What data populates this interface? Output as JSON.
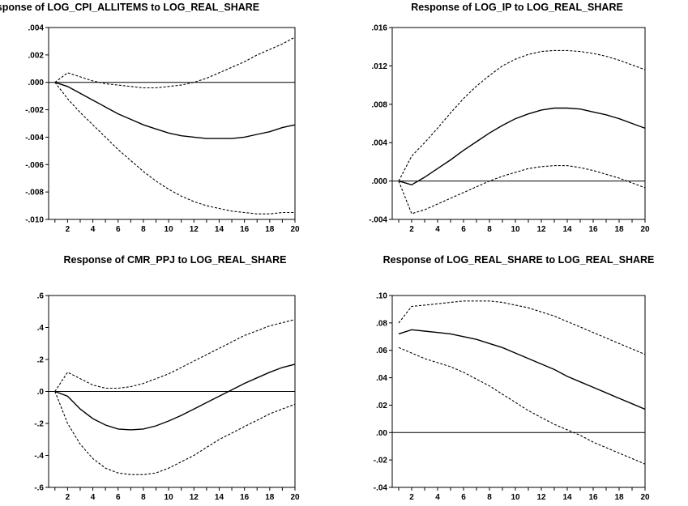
{
  "chart_data": [
    {
      "type": "line",
      "title": "Response of LOG_CPI_ALLITEMS to LOG_REAL_SHARE",
      "x": [
        1,
        2,
        3,
        4,
        5,
        6,
        7,
        8,
        9,
        10,
        11,
        12,
        13,
        14,
        15,
        16,
        17,
        18,
        19,
        20
      ],
      "ylim": [
        -0.01,
        0.004
      ],
      "yticks": [
        -0.01,
        -0.008,
        -0.006,
        -0.004,
        -0.002,
        0.0,
        0.002,
        0.004
      ],
      "ytick_labels": [
        "-.010",
        "-.008",
        "-.006",
        "-.004",
        "-.002",
        ".000",
        ".002",
        ".004"
      ],
      "xtick_labels": [
        "2",
        "4",
        "6",
        "8",
        "10",
        "12",
        "14",
        "16",
        "18",
        "20"
      ],
      "series": [
        {
          "style": "solid",
          "values": [
            0.0,
            -0.0003,
            -0.0008,
            -0.0013,
            -0.0018,
            -0.0023,
            -0.0027,
            -0.0031,
            -0.0034,
            -0.0037,
            -0.0039,
            -0.004,
            -0.0041,
            -0.0041,
            -0.0041,
            -0.004,
            -0.0038,
            -0.0036,
            -0.0033,
            -0.0031
          ]
        },
        {
          "style": "dashed",
          "values": [
            0.0,
            0.0007,
            0.0004,
            0.0001,
            -0.0001,
            -0.0002,
            -0.0003,
            -0.0004,
            -0.0004,
            -0.0003,
            -0.0002,
            0.0,
            0.0003,
            0.0007,
            0.0011,
            0.0015,
            0.002,
            0.0024,
            0.0028,
            0.0033
          ]
        },
        {
          "style": "dashed",
          "values": [
            0.0,
            -0.0012,
            -0.0022,
            -0.0031,
            -0.004,
            -0.0049,
            -0.0057,
            -0.0065,
            -0.0072,
            -0.0078,
            -0.0083,
            -0.0087,
            -0.009,
            -0.0092,
            -0.0094,
            -0.0095,
            -0.0096,
            -0.0096,
            -0.0095,
            -0.0095
          ]
        }
      ],
      "zero_line": true
    },
    {
      "type": "line",
      "title": "Response of LOG_IP to LOG_REAL_SHARE",
      "x": [
        1,
        2,
        3,
        4,
        5,
        6,
        7,
        8,
        9,
        10,
        11,
        12,
        13,
        14,
        15,
        16,
        17,
        18,
        19,
        20
      ],
      "ylim": [
        -0.004,
        0.016
      ],
      "yticks": [
        -0.004,
        0.0,
        0.004,
        0.008,
        0.012,
        0.016
      ],
      "ytick_labels": [
        "-.004",
        ".000",
        ".004",
        ".008",
        ".012",
        ".016"
      ],
      "xtick_labels": [
        "2",
        "4",
        "6",
        "8",
        "10",
        "12",
        "14",
        "16",
        "18",
        "20"
      ],
      "series": [
        {
          "style": "solid",
          "values": [
            0.0,
            -0.0004,
            0.0004,
            0.0013,
            0.0022,
            0.0032,
            0.0041,
            0.005,
            0.0058,
            0.0065,
            0.007,
            0.0074,
            0.0076,
            0.0076,
            0.0075,
            0.0072,
            0.0069,
            0.0065,
            0.006,
            0.0055
          ]
        },
        {
          "style": "dashed",
          "values": [
            0.0,
            0.0026,
            0.004,
            0.0055,
            0.0071,
            0.0086,
            0.0099,
            0.011,
            0.012,
            0.0127,
            0.0132,
            0.0135,
            0.0136,
            0.0136,
            0.0135,
            0.0133,
            0.013,
            0.0126,
            0.0121,
            0.0116
          ]
        },
        {
          "style": "dashed",
          "values": [
            0.0,
            -0.0034,
            -0.003,
            -0.0024,
            -0.0018,
            -0.0012,
            -0.0006,
            0.0,
            0.0005,
            0.0009,
            0.0013,
            0.0015,
            0.0016,
            0.0016,
            0.0014,
            0.0011,
            0.0007,
            0.0003,
            -0.0002,
            -0.0007
          ]
        }
      ],
      "zero_line": true
    },
    {
      "type": "line",
      "title": "Response of CMR_PPJ to LOG_REAL_SHARE",
      "x": [
        1,
        2,
        3,
        4,
        5,
        6,
        7,
        8,
        9,
        10,
        11,
        12,
        13,
        14,
        15,
        16,
        17,
        18,
        19,
        20
      ],
      "ylim": [
        -0.6,
        0.6
      ],
      "yticks": [
        -0.6,
        -0.4,
        -0.2,
        0.0,
        0.2,
        0.4,
        0.6
      ],
      "ytick_labels": [
        "-.6",
        "-.4",
        "-.2",
        ".0",
        ".2",
        ".4",
        ".6"
      ],
      "xtick_labels": [
        "2",
        "4",
        "6",
        "8",
        "10",
        "12",
        "14",
        "16",
        "18",
        "20"
      ],
      "series": [
        {
          "style": "solid",
          "values": [
            0.0,
            -0.03,
            -0.11,
            -0.17,
            -0.21,
            -0.235,
            -0.24,
            -0.235,
            -0.215,
            -0.185,
            -0.15,
            -0.11,
            -0.07,
            -0.03,
            0.01,
            0.05,
            0.085,
            0.12,
            0.15,
            0.17
          ]
        },
        {
          "style": "dashed",
          "values": [
            0.0,
            0.12,
            0.08,
            0.04,
            0.02,
            0.02,
            0.03,
            0.05,
            0.08,
            0.11,
            0.15,
            0.19,
            0.23,
            0.27,
            0.31,
            0.35,
            0.38,
            0.41,
            0.43,
            0.45
          ]
        },
        {
          "style": "dashed",
          "values": [
            0.0,
            -0.2,
            -0.33,
            -0.42,
            -0.48,
            -0.51,
            -0.52,
            -0.52,
            -0.51,
            -0.48,
            -0.44,
            -0.4,
            -0.35,
            -0.3,
            -0.26,
            -0.22,
            -0.18,
            -0.14,
            -0.11,
            -0.08
          ]
        }
      ],
      "zero_line": true
    },
    {
      "type": "line",
      "title": "Response of LOG_REAL_SHARE to LOG_REAL_SHARE",
      "x": [
        1,
        2,
        3,
        4,
        5,
        6,
        7,
        8,
        9,
        10,
        11,
        12,
        13,
        14,
        15,
        16,
        17,
        18,
        19,
        20
      ],
      "ylim": [
        -0.04,
        0.1
      ],
      "yticks": [
        -0.04,
        -0.02,
        0.0,
        0.02,
        0.04,
        0.06,
        0.08,
        0.1
      ],
      "ytick_labels": [
        "-.04",
        "-.02",
        ".00",
        ".02",
        ".04",
        ".06",
        ".08",
        ".10"
      ],
      "xtick_labels": [
        "2",
        "4",
        "6",
        "8",
        "10",
        "12",
        "14",
        "16",
        "18",
        "20"
      ],
      "series": [
        {
          "style": "solid",
          "values": [
            0.072,
            0.075,
            0.074,
            0.073,
            0.072,
            0.07,
            0.068,
            0.065,
            0.062,
            0.058,
            0.054,
            0.05,
            0.046,
            0.041,
            0.037,
            0.033,
            0.029,
            0.025,
            0.021,
            0.017
          ]
        },
        {
          "style": "dashed",
          "values": [
            0.08,
            0.092,
            0.093,
            0.094,
            0.095,
            0.096,
            0.096,
            0.096,
            0.095,
            0.093,
            0.091,
            0.088,
            0.085,
            0.081,
            0.077,
            0.073,
            0.069,
            0.065,
            0.061,
            0.057
          ]
        },
        {
          "style": "dashed",
          "values": [
            0.062,
            0.058,
            0.054,
            0.051,
            0.048,
            0.044,
            0.039,
            0.034,
            0.028,
            0.022,
            0.016,
            0.011,
            0.006,
            0.002,
            -0.002,
            -0.007,
            -0.011,
            -0.015,
            -0.019,
            -0.023
          ]
        }
      ],
      "zero_line": true
    }
  ]
}
